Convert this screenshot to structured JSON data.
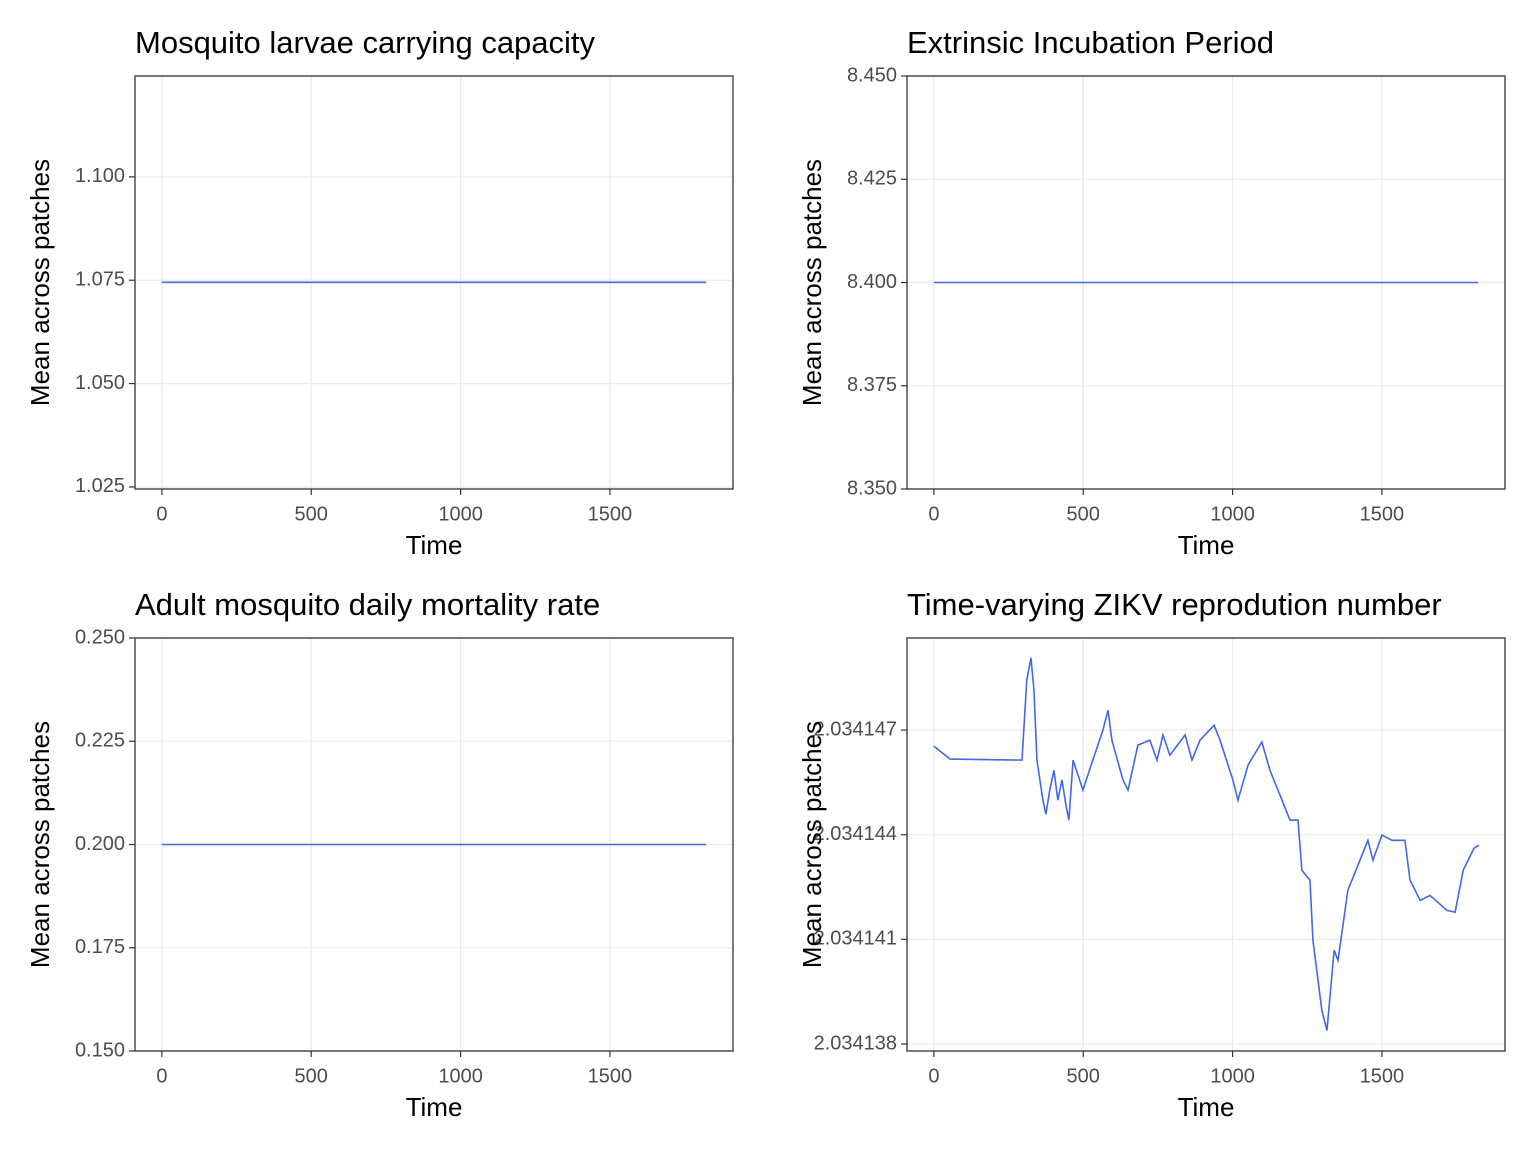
{
  "chart_data": [
    {
      "type": "line",
      "title": "Mosquito larvae carrying capacity",
      "x_label": "Time",
      "y_label": "Mean across patches",
      "x": [
        0,
        1822
      ],
      "series": [
        {
          "color": "#4169e1",
          "values": [
            1.0745,
            1.0745
          ]
        }
      ],
      "xlim": [
        -90,
        1912
      ],
      "xticks": [
        0,
        500,
        1000,
        1500
      ],
      "ylim": [
        1.0245,
        1.1244
      ],
      "yticks": [
        {
          "value": 1.025,
          "label": "1.025"
        },
        {
          "value": 1.05,
          "label": "1.050"
        },
        1.075,
        {
          "value": 1.1,
          "label": "1.100"
        }
      ],
      "grid": true
    },
    {
      "type": "line",
      "title": "Extrinsic Incubation Period",
      "x_label": "Time",
      "y_label": "Mean across patches",
      "x": [
        0,
        1822
      ],
      "series": [
        {
          "color": "#4169e1",
          "values": [
            8.4,
            8.4
          ]
        }
      ],
      "xlim": [
        -90,
        1912
      ],
      "xticks": [
        0,
        500,
        1000,
        1500
      ],
      "ylim": [
        8.35,
        8.45
      ],
      "yticks": [
        {
          "value": 8.35,
          "label": "8.350"
        },
        8.375,
        {
          "value": 8.4,
          "label": "8.400"
        },
        8.425,
        {
          "value": 8.45,
          "label": "8.450"
        }
      ],
      "grid": true
    },
    {
      "type": "line",
      "title": "Adult mosquito daily mortality rate",
      "x_label": "Time",
      "y_label": "Mean across patches",
      "x": [
        0,
        1822
      ],
      "series": [
        {
          "color": "#4169e1",
          "values": [
            0.2,
            0.2
          ]
        }
      ],
      "xlim": [
        -90,
        1912
      ],
      "xticks": [
        0,
        500,
        1000,
        1500
      ],
      "ylim": [
        0.15,
        0.25
      ],
      "yticks": [
        {
          "value": 0.15,
          "label": "0.150"
        },
        0.175,
        {
          "value": 0.2,
          "label": "0.200"
        },
        0.225,
        {
          "value": 0.25,
          "label": "0.250"
        }
      ],
      "grid": true
    },
    {
      "type": "line",
      "title": "Time-varying ZIKV reprodution number",
      "x_label": "Time",
      "y_label": "Mean across patches",
      "x": [
        0,
        54,
        295,
        311,
        325,
        335,
        345,
        365,
        375,
        388,
        402,
        415,
        429,
        442,
        452,
        466,
        499,
        532,
        566,
        583,
        596,
        633,
        650,
        683,
        723,
        747,
        767,
        790,
        841,
        864,
        891,
        938,
        958,
        1001,
        1018,
        1052,
        1098,
        1125,
        1159,
        1192,
        1219,
        1232,
        1259,
        1269,
        1299,
        1316,
        1340,
        1353,
        1386,
        1420,
        1453,
        1470,
        1500,
        1534,
        1577,
        1594,
        1628,
        1661,
        1718,
        1745,
        1772,
        1808,
        1825
      ],
      "series": [
        {
          "color": "#4169e1",
          "values": [
            2.03414654,
            2.03414617,
            2.03414614,
            2.03414843,
            2.03414907,
            2.03414815,
            2.03414614,
            2.03414499,
            2.03414459,
            2.03414528,
            2.03414585,
            2.03414499,
            2.03414557,
            2.03414485,
            2.03414442,
            2.03414614,
            2.03414528,
            2.03414614,
            2.034147,
            2.03414757,
            2.03414671,
            2.03414557,
            2.03414528,
            2.03414657,
            2.03414671,
            2.03414614,
            2.03414686,
            2.03414628,
            2.03414686,
            2.03414614,
            2.03414671,
            2.03414714,
            2.03414671,
            2.03414557,
            2.03414499,
            2.034146,
            2.03414666,
            2.03414585,
            2.03414513,
            2.03414442,
            2.03414442,
            2.03414298,
            2.0341427,
            2.03414097,
            2.03413896,
            2.03413839,
            2.03414069,
            2.0341404,
            2.03414241,
            2.03414313,
            2.03414384,
            2.03414327,
            2.03414399,
            2.03414384,
            2.03414384,
            2.0341427,
            2.03414212,
            2.03414226,
            2.03414183,
            2.03414178,
            2.03414298,
            2.03414361,
            2.0341437
          ]
        }
      ],
      "xlim": [
        -90,
        1912
      ],
      "xticks": [
        0,
        500,
        1000,
        1500
      ],
      "ylim": [
        2.0341378,
        2.03414964
      ],
      "yticks": [
        2.034138,
        2.034141,
        2.034144,
        2.034147
      ],
      "grid": true
    }
  ]
}
